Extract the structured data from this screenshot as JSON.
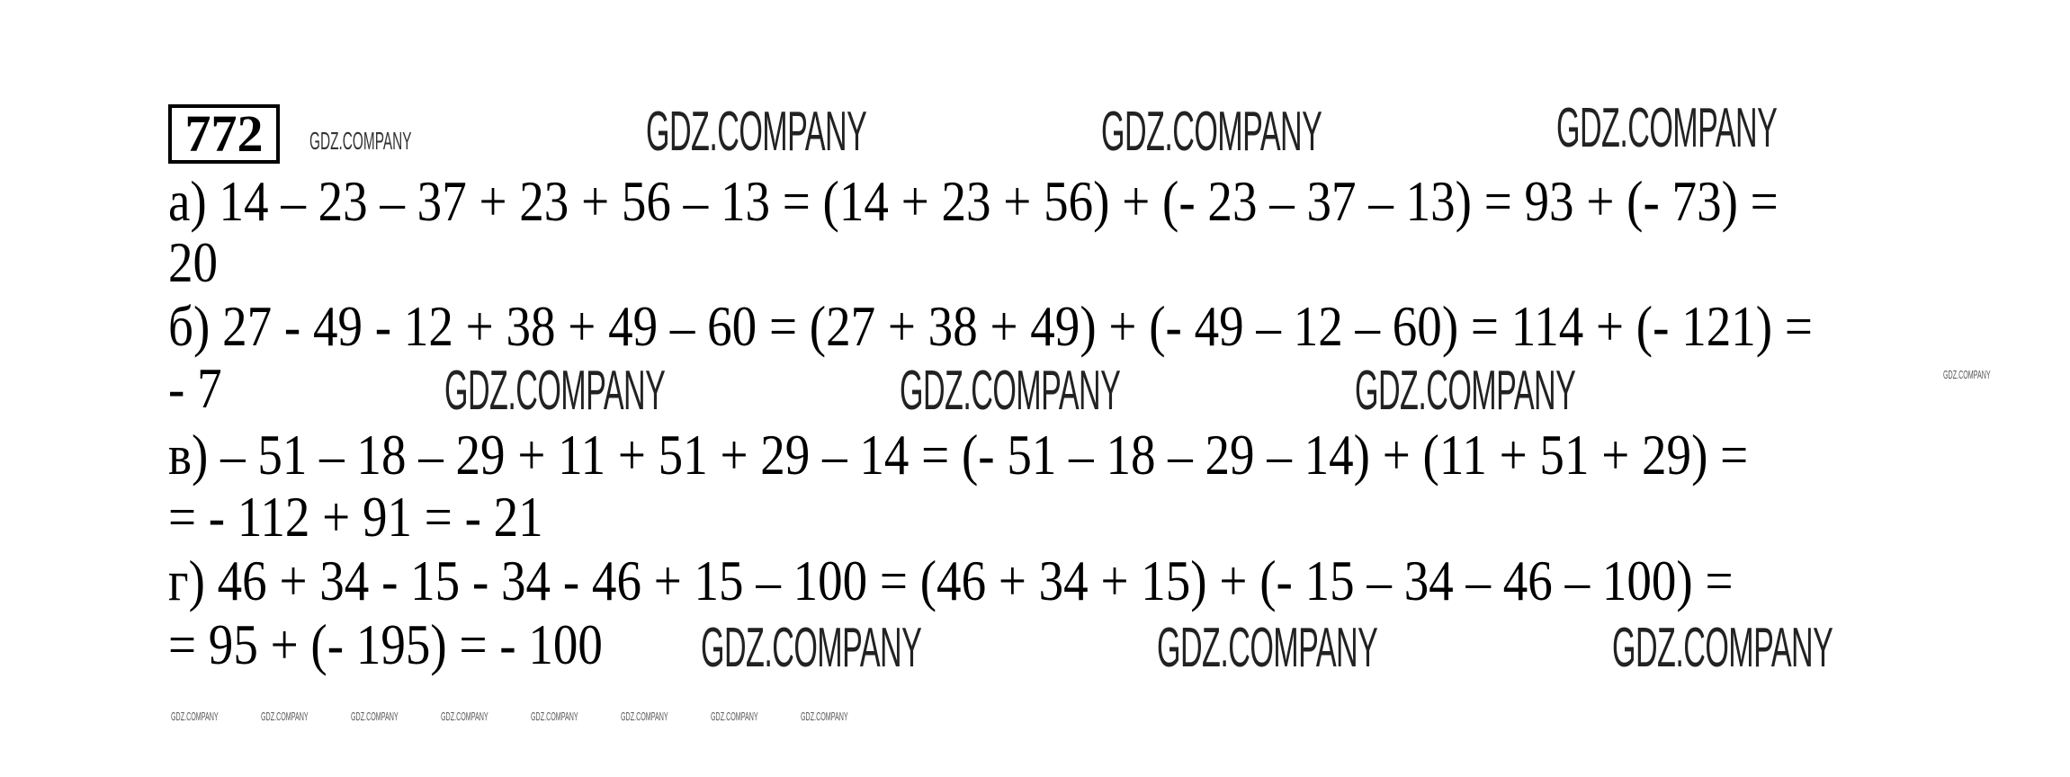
{
  "problem_number": "772",
  "watermark": "GDZ.COMPANY",
  "lines": [
    "а) 14 – 23 – 37 + 23 + 56 – 13 = (14 + 23 + 56) + (- 23 – 37 – 13) = 93 + (- 73) =",
    "20",
    "б) 27 - 49 - 12 + 38 + 49 – 60 = (27 + 38 + 49) + (- 49 – 12 – 60) = 114 + (- 121) =",
    "- 7",
    "в) – 51 – 18 – 29 + 11 + 51 + 29 – 14 = (- 51 – 18 – 29 – 14) + (11 + 51 + 29) =",
    "= - 112 + 91 = - 21",
    "г) 46 + 34 - 15 - 34 - 46 + 15 – 100 = (46 + 34 + 15) + (- 15 – 34 – 46 – 100) =",
    "= 95 + (- 195) = - 100"
  ]
}
